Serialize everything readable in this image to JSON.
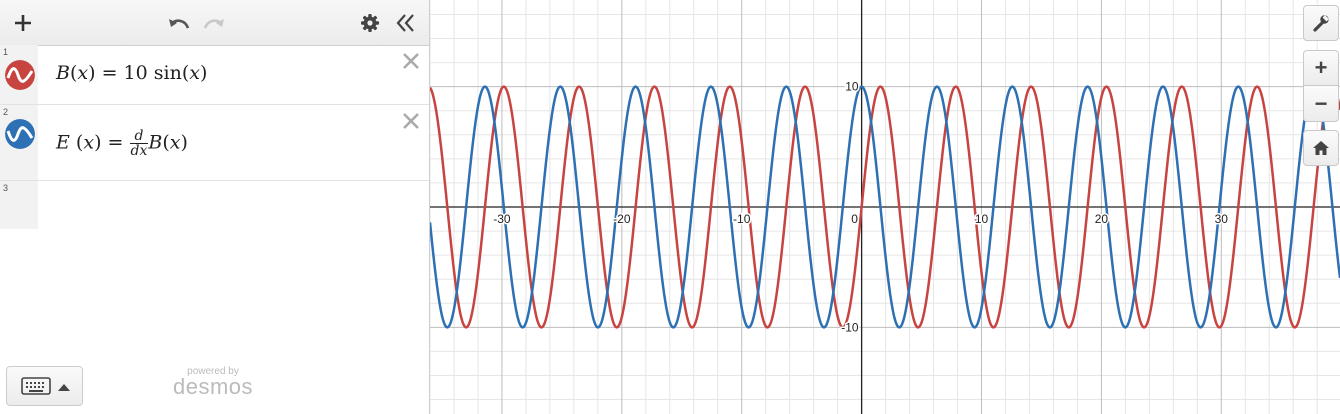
{
  "toolbar": {
    "add_icon": "plus-icon",
    "undo_icon": "undo-icon",
    "redo_icon": "redo-icon",
    "settings_icon": "gear-icon",
    "collapse_icon": "double-chevron-left-icon"
  },
  "expressions": [
    {
      "index": "1",
      "color": "#c74440",
      "lhs": "B",
      "var": "x",
      "coef": "10",
      "fn": "sin"
    },
    {
      "index": "2",
      "color": "#2d70b3",
      "lhs": "E",
      "var": "x",
      "frac_num": "d",
      "frac_den": "dx",
      "rhs_fn": "B"
    },
    {
      "index": "3"
    }
  ],
  "footer": {
    "powered_by": "powered by",
    "brand": "desmos"
  },
  "graph": {
    "x_ticks": [
      "-30",
      "-20",
      "-10",
      "0",
      "10",
      "20",
      "30"
    ],
    "y_ticks": [
      "10",
      "-10"
    ],
    "colors": {
      "sin": "#c74440",
      "cos": "#2d70b3",
      "grid_minor": "#e6e6e6",
      "grid_major": "#bdbdbd",
      "axis": "#222222"
    }
  },
  "chart_data": {
    "type": "line",
    "xlim": [
      -36,
      39.9
    ],
    "ylim": [
      -17.2,
      17.2
    ],
    "series": [
      {
        "name": "B(x) = 10 sin(x)",
        "function": "10*sin(x)",
        "color": "#c74440"
      },
      {
        "name": "E(x) = d/dx B(x)",
        "function": "10*cos(x)",
        "color": "#2d70b3"
      }
    ],
    "x_ticks": [
      -30,
      -20,
      -10,
      0,
      10,
      20,
      30
    ],
    "y_ticks": [
      -10,
      10
    ],
    "grid": true
  },
  "side_controls": {
    "wrench_icon": "wrench-icon",
    "zoom_in": "+",
    "zoom_out": "−",
    "home_icon": "home-icon"
  }
}
